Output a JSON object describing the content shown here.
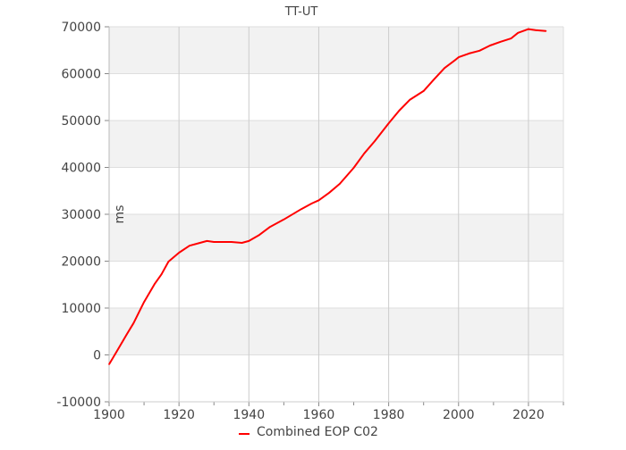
{
  "chart_data": {
    "type": "line",
    "title": "TT-UT",
    "xlabel": "",
    "ylabel": "ms",
    "xlim": [
      1900,
      2030
    ],
    "ylim": [
      -10000,
      70000
    ],
    "x_ticks": [
      1900,
      1920,
      1940,
      1960,
      1980,
      2000,
      2020
    ],
    "y_ticks": [
      -10000,
      0,
      10000,
      20000,
      30000,
      40000,
      50000,
      60000,
      70000
    ],
    "grid": true,
    "legend_position": "bottom",
    "series": [
      {
        "name": "Combined EOP C02",
        "color": "#ff0000",
        "x": [
          1900,
          1902,
          1905,
          1907,
          1910,
          1913,
          1915,
          1917,
          1920,
          1923,
          1926,
          1928,
          1930,
          1935,
          1938,
          1940,
          1943,
          1946,
          1950,
          1955,
          1958,
          1960,
          1963,
          1966,
          1970,
          1973,
          1976,
          1980,
          1983,
          1986,
          1990,
          1993,
          1996,
          1999,
          2000,
          2003,
          2006,
          2009,
          2012,
          2015,
          2017,
          2020,
          2022,
          2025
        ],
        "y": [
          -2000,
          500,
          4300,
          6800,
          11300,
          15100,
          17200,
          19900,
          21800,
          23300,
          23900,
          24300,
          24100,
          24100,
          23900,
          24300,
          25600,
          27300,
          28900,
          31100,
          32300,
          33000,
          34600,
          36500,
          39900,
          43000,
          45600,
          49400,
          52100,
          54400,
          56300,
          58800,
          61200,
          62900,
          63500,
          64300,
          64900,
          66000,
          66800,
          67500,
          68700,
          69500,
          69300,
          69100
        ]
      }
    ]
  }
}
